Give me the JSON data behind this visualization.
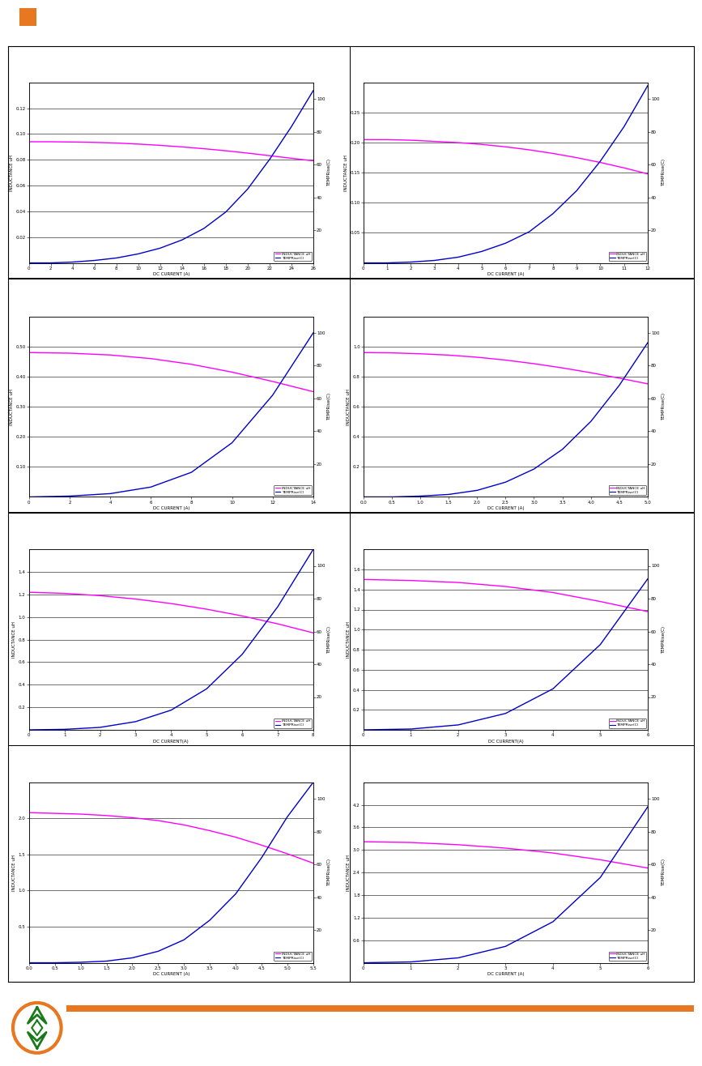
{
  "background_color": "#ffffff",
  "orange_color": "#E87722",
  "plots": [
    {
      "ind_label": "INDUCTANCE uH",
      "temp_label": "TEMPRise(C)",
      "dc_label": "DC CURRENT (A)",
      "ind_ylim": [
        0.0,
        0.14
      ],
      "ind_yticks": [
        0.02,
        0.04,
        0.06,
        0.08,
        0.1,
        0.12
      ],
      "temp_ylim": [
        0,
        110
      ],
      "temp_yticks": [
        20,
        40,
        60,
        80,
        100
      ],
      "xlim": [
        0,
        26
      ],
      "xticks": [
        0,
        2,
        4,
        6,
        8,
        10,
        12,
        14,
        16,
        18,
        20,
        22,
        24,
        26
      ],
      "ind_x": [
        0,
        2,
        4,
        6,
        8,
        10,
        12,
        14,
        16,
        18,
        20,
        22,
        24,
        26
      ],
      "ind_y": [
        0.094,
        0.094,
        0.0938,
        0.0935,
        0.093,
        0.0922,
        0.0912,
        0.09,
        0.0886,
        0.087,
        0.0852,
        0.0832,
        0.0812,
        0.0792
      ],
      "temp_x": [
        0,
        2,
        4,
        6,
        8,
        10,
        12,
        14,
        16,
        18,
        20,
        22,
        24,
        26
      ],
      "temp_y": [
        0,
        0,
        0.5,
        1.5,
        3,
        5.5,
        9,
        14,
        21,
        31,
        45,
        63,
        83,
        105
      ]
    },
    {
      "ind_label": "INDUCTANCE uH",
      "temp_label": "TEMPRise(C)",
      "dc_label": "DC CURRENT (A)",
      "ind_ylim": [
        0.0,
        0.3
      ],
      "ind_yticks": [
        0.05,
        0.1,
        0.15,
        0.2,
        0.25
      ],
      "temp_ylim": [
        0,
        110
      ],
      "temp_yticks": [
        20,
        40,
        60,
        80,
        100
      ],
      "xlim": [
        0,
        12
      ],
      "xticks": [
        0,
        1,
        2,
        3,
        4,
        5,
        6,
        7,
        8,
        9,
        10,
        11,
        12
      ],
      "ind_x": [
        0,
        1,
        2,
        3,
        4,
        5,
        6,
        7,
        8,
        9,
        10,
        11,
        12
      ],
      "ind_y": [
        0.205,
        0.205,
        0.204,
        0.202,
        0.2,
        0.197,
        0.193,
        0.188,
        0.182,
        0.175,
        0.167,
        0.158,
        0.148
      ],
      "temp_x": [
        0,
        1,
        2,
        3,
        4,
        5,
        6,
        7,
        8,
        9,
        10,
        11,
        12
      ],
      "temp_y": [
        0,
        0,
        0.5,
        1.5,
        3.5,
        7,
        12,
        19,
        30,
        44,
        62,
        83,
        108
      ]
    },
    {
      "ind_label": "INDUCTANCE uH",
      "temp_label": "TEMPRise(C)",
      "dc_label": "DC CURRENT (A)",
      "ind_ylim": [
        0.0,
        0.6
      ],
      "ind_yticks": [
        0.1,
        0.2,
        0.3,
        0.4,
        0.5
      ],
      "temp_ylim": [
        0,
        110
      ],
      "temp_yticks": [
        20,
        40,
        60,
        80,
        100
      ],
      "xlim": [
        0,
        14
      ],
      "xticks": [
        0,
        2,
        4,
        6,
        8,
        10,
        12,
        14
      ],
      "ind_x": [
        0,
        2,
        4,
        6,
        8,
        10,
        12,
        14
      ],
      "ind_y": [
        0.48,
        0.478,
        0.472,
        0.46,
        0.441,
        0.415,
        0.384,
        0.35
      ],
      "temp_x": [
        0,
        2,
        4,
        6,
        8,
        10,
        12,
        14
      ],
      "temp_y": [
        0,
        0.5,
        2,
        6,
        15,
        33,
        62,
        100
      ]
    },
    {
      "ind_label": "INDUCTANCE uH",
      "temp_label": "TEMPRise(C)",
      "dc_label": "DC CURRENT (A)",
      "ind_ylim": [
        0.0,
        1.2
      ],
      "ind_yticks": [
        0.2,
        0.4,
        0.6,
        0.8,
        1.0
      ],
      "temp_ylim": [
        0,
        110
      ],
      "temp_yticks": [
        20,
        40,
        60,
        80,
        100
      ],
      "xlim": [
        0.0,
        5.0
      ],
      "xticks": [
        0.0,
        0.5,
        1.0,
        1.5,
        2.0,
        2.5,
        3.0,
        3.5,
        4.0,
        4.5,
        5.0
      ],
      "ind_x": [
        0.0,
        0.5,
        1.0,
        1.5,
        2.0,
        2.5,
        3.0,
        3.5,
        4.0,
        4.5,
        5.0
      ],
      "ind_y": [
        0.96,
        0.958,
        0.952,
        0.943,
        0.929,
        0.91,
        0.886,
        0.858,
        0.826,
        0.79,
        0.752
      ],
      "temp_x": [
        0.0,
        0.5,
        1.0,
        1.5,
        2.0,
        2.5,
        3.0,
        3.5,
        4.0,
        4.5,
        5.0
      ],
      "temp_y": [
        0,
        0,
        0.5,
        1.5,
        4,
        9,
        17,
        29,
        46,
        68,
        94
      ]
    },
    {
      "ind_label": "INDUCTANCE uH",
      "temp_label": "TEMPRise(C)",
      "dc_label": "DC CURRENT(A)",
      "ind_ylim": [
        0.0,
        1.6
      ],
      "ind_yticks": [
        0.2,
        0.4,
        0.6,
        0.8,
        1.0,
        1.2,
        1.4
      ],
      "temp_ylim": [
        0,
        110
      ],
      "temp_yticks": [
        20,
        40,
        60,
        80,
        100
      ],
      "xlim": [
        0,
        8
      ],
      "xticks": [
        0,
        1,
        2,
        3,
        4,
        5,
        6,
        7,
        8
      ],
      "ind_x": [
        0,
        1,
        2,
        3,
        4,
        5,
        6,
        7,
        8
      ],
      "ind_y": [
        1.22,
        1.21,
        1.19,
        1.16,
        1.12,
        1.07,
        1.01,
        0.94,
        0.86
      ],
      "temp_x": [
        0,
        1,
        2,
        3,
        4,
        5,
        6,
        7,
        8
      ],
      "temp_y": [
        0,
        0.3,
        1.5,
        5,
        12,
        25,
        46,
        75,
        110
      ]
    },
    {
      "ind_label": "INDUCTANCE uH",
      "temp_label": "TEMPRise(C)",
      "dc_label": "DC CURRENT(A)",
      "ind_ylim": [
        0.0,
        1.8
      ],
      "ind_yticks": [
        0.2,
        0.4,
        0.6,
        0.8,
        1.0,
        1.2,
        1.4,
        1.6
      ],
      "temp_ylim": [
        0,
        110
      ],
      "temp_yticks": [
        20,
        40,
        60,
        80,
        100
      ],
      "xlim": [
        0,
        6
      ],
      "xticks": [
        0,
        1,
        2,
        3,
        4,
        5,
        6
      ],
      "ind_x": [
        0,
        1,
        2,
        3,
        4,
        5,
        6
      ],
      "ind_y": [
        1.5,
        1.49,
        1.47,
        1.43,
        1.37,
        1.28,
        1.18
      ],
      "temp_x": [
        0,
        1,
        2,
        3,
        4,
        5,
        6
      ],
      "temp_y": [
        0,
        0.5,
        3,
        10,
        25,
        52,
        92
      ]
    },
    {
      "ind_label": "INDUCTANCE uH",
      "temp_label": "TEMPRise(C)",
      "dc_label": "DC CURRENT (A)",
      "ind_ylim": [
        0.0,
        2.5
      ],
      "ind_yticks": [
        0.5,
        1.0,
        1.5,
        2.0
      ],
      "temp_ylim": [
        0,
        110
      ],
      "temp_yticks": [
        20,
        40,
        60,
        80,
        100
      ],
      "xlim": [
        0.0,
        5.5
      ],
      "xticks": [
        0.0,
        0.5,
        1.0,
        1.5,
        2.0,
        2.5,
        3.0,
        3.5,
        4.0,
        4.5,
        5.0,
        5.5
      ],
      "ind_x": [
        0.0,
        0.5,
        1.0,
        1.5,
        2.0,
        2.5,
        3.0,
        3.5,
        4.0,
        4.5,
        5.0,
        5.5
      ],
      "ind_y": [
        2.08,
        2.07,
        2.06,
        2.04,
        2.01,
        1.97,
        1.91,
        1.83,
        1.74,
        1.63,
        1.51,
        1.38
      ],
      "temp_x": [
        0.0,
        0.5,
        1.0,
        1.5,
        2.0,
        2.5,
        3.0,
        3.5,
        4.0,
        4.5,
        5.0,
        5.5
      ],
      "temp_y": [
        0,
        0,
        0.3,
        1,
        3,
        7,
        14,
        26,
        42,
        64,
        89,
        110
      ]
    },
    {
      "ind_label": "INDUCTANCE uH",
      "temp_label": "TEMPRise(C)",
      "dc_label": "DC CURRENT (A)",
      "ind_ylim": [
        0.0,
        4.8
      ],
      "ind_yticks": [
        0.6,
        1.2,
        1.8,
        2.4,
        3.0,
        3.6,
        4.2
      ],
      "temp_ylim": [
        0,
        110
      ],
      "temp_yticks": [
        20,
        40,
        60,
        80,
        100
      ],
      "xlim": [
        0,
        6
      ],
      "xticks": [
        0,
        1,
        2,
        3,
        4,
        5,
        6
      ],
      "ind_x": [
        0,
        1,
        2,
        3,
        4,
        5,
        6
      ],
      "ind_y": [
        3.22,
        3.2,
        3.14,
        3.05,
        2.92,
        2.74,
        2.52
      ],
      "temp_x": [
        0,
        1,
        2,
        3,
        4,
        5,
        6
      ],
      "temp_y": [
        0,
        0.5,
        3,
        10,
        25,
        52,
        95
      ]
    }
  ]
}
